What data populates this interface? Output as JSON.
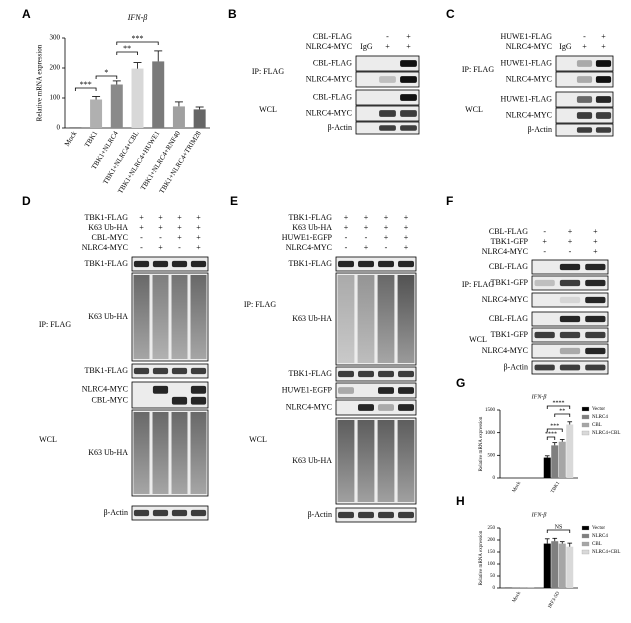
{
  "chart_data": [
    {
      "type": "bar",
      "label": "A",
      "title": "IFN-β",
      "y_label": "Relative mRNA expression",
      "categories": [
        "Mock",
        "TBK1",
        "TBK1+NLRC4",
        "TBK1+NLRC4+CBL",
        "TBK1+NLRC4+HUWE1",
        "TBK1+NLRC4+RNF40",
        "TBK1+NLRC4+TRIM28"
      ],
      "values": [
        1,
        95,
        145,
        198,
        222,
        72,
        62
      ],
      "errors": [
        0,
        10,
        12,
        20,
        35,
        15,
        8
      ],
      "colors": [
        "#000000",
        "#b0b0b0",
        "#8a8a8a",
        "#d8d8d8",
        "#7a7a7a",
        "#a0a0a0",
        "#666666"
      ],
      "ylim": [
        0,
        300
      ],
      "yticks": [
        0,
        100,
        200,
        300
      ],
      "annotations": [
        "***",
        "*",
        "**",
        "***"
      ]
    },
    {
      "type": "bar",
      "label": "G",
      "title": "IFN-β",
      "y_label": "Relative mRNA expression",
      "categories": [
        "Mock",
        "TBK1"
      ],
      "series": [
        {
          "name": "Vector",
          "color": "#000000",
          "values": [
            0,
            450
          ],
          "errors": [
            0,
            40
          ]
        },
        {
          "name": "NLRC4",
          "color": "#7f7f7f",
          "values": [
            0,
            720
          ],
          "errors": [
            0,
            60
          ]
        },
        {
          "name": "CBL",
          "color": "#a6a6a6",
          "values": [
            0,
            800
          ],
          "errors": [
            0,
            50
          ]
        },
        {
          "name": "NLRC4+CBL",
          "color": "#d9d9d9",
          "values": [
            0,
            1180
          ],
          "errors": [
            0,
            60
          ]
        }
      ],
      "ylim": [
        0,
        1500
      ],
      "yticks": [
        0,
        500,
        1000,
        1500
      ],
      "annotations": [
        "****",
        "***",
        "**",
        "****"
      ]
    },
    {
      "type": "bar",
      "label": "H",
      "title": "IFN-β",
      "y_label": "Relative mRNA expression",
      "categories": [
        "Mock",
        "IRF3-5D"
      ],
      "series": [
        {
          "name": "Vector",
          "color": "#000000",
          "values": [
            1,
            185
          ],
          "errors": [
            0,
            20
          ]
        },
        {
          "name": "NLRC4",
          "color": "#7f7f7f",
          "values": [
            1,
            195
          ],
          "errors": [
            0,
            12
          ]
        },
        {
          "name": "CBL",
          "color": "#a6a6a6",
          "values": [
            1,
            185
          ],
          "errors": [
            0,
            8
          ]
        },
        {
          "name": "NLRC4+CBL",
          "color": "#d9d9d9",
          "values": [
            1,
            172
          ],
          "errors": [
            0,
            15
          ]
        }
      ],
      "ylim": [
        0,
        250
      ],
      "yticks": [
        0,
        50,
        100,
        150,
        200,
        250
      ],
      "annotations": [
        "NS"
      ]
    }
  ],
  "blots": [
    {
      "label": "B",
      "header": [
        {
          "label": "CBL-FLAG",
          "signs": [
            null,
            "-",
            "+"
          ]
        },
        {
          "label": "NLRC4-MYC",
          "signs": [
            "IgG",
            "+",
            "+"
          ]
        }
      ],
      "groups": [
        {
          "label": "IP: FLAG",
          "rows": [
            [
              "CBL-FLAG"
            ],
            [
              "NLRC4-MYC"
            ]
          ]
        },
        {
          "label": "WCL",
          "rows": [
            [
              "CBL-FLAG"
            ],
            [
              "NLRC4-MYC"
            ],
            [
              "β-Actin"
            ]
          ]
        }
      ]
    },
    {
      "label": "C",
      "header": [
        {
          "label": "HUWE1-FLAG",
          "signs": [
            null,
            "-",
            "+"
          ]
        },
        {
          "label": "NLRC4-MYC",
          "signs": [
            "IgG",
            "+",
            "+"
          ]
        }
      ],
      "groups": [
        {
          "label": "IP: FLAG",
          "rows": [
            [
              "HUWE1-FLAG"
            ],
            [
              "NLRC4-MYC"
            ]
          ]
        },
        {
          "label": "WCL",
          "rows": [
            [
              "HUWE1-FLAG"
            ],
            [
              "NLRC4-MYC"
            ],
            [
              "β-Actin"
            ]
          ]
        }
      ]
    },
    {
      "label": "D",
      "header": [
        {
          "label": "TBK1-FLAG",
          "signs": [
            "+",
            "+",
            "+",
            "+"
          ]
        },
        {
          "label": "K63 Ub-HA",
          "signs": [
            "+",
            "+",
            "+",
            "+"
          ]
        },
        {
          "label": "CBL-MYC",
          "signs": [
            "-",
            "-",
            "+",
            "+"
          ]
        },
        {
          "label": "NLRC4-MYC",
          "signs": [
            "-",
            "+",
            "-",
            "+"
          ]
        }
      ],
      "groups": [
        {
          "label": "IP: FLAG",
          "rows": [
            [
              "TBK1-FLAG"
            ],
            [
              "K63 Ub-HA"
            ]
          ]
        },
        {
          "label": "WCL",
          "rows": [
            [
              "TBK1-FLAG"
            ],
            [
              "NLRC4-MYC",
              "CBL-MYC"
            ],
            [
              "K63 Ub-HA"
            ],
            [
              "β-Actin"
            ]
          ]
        }
      ]
    },
    {
      "label": "E",
      "header": [
        {
          "label": "TBK1-FLAG",
          "signs": [
            "+",
            "+",
            "+",
            "+"
          ]
        },
        {
          "label": "K63 Ub-HA",
          "signs": [
            "+",
            "+",
            "+",
            "+"
          ]
        },
        {
          "label": "HUWE1-EGFP",
          "signs": [
            "-",
            "-",
            "+",
            "+"
          ]
        },
        {
          "label": "NLRC4-MYC",
          "signs": [
            "-",
            "+",
            "-",
            "+"
          ]
        }
      ],
      "groups": [
        {
          "label": "IP: FLAG",
          "rows": [
            [
              "TBK1-FLAG"
            ],
            [
              "K63 Ub-HA"
            ]
          ]
        },
        {
          "label": "WCL",
          "rows": [
            [
              "TBK1-FLAG"
            ],
            [
              "HUWE1-EGFP"
            ],
            [
              "NLRC4-MYC"
            ],
            [
              "K63 Ub-HA"
            ],
            [
              "β-Actin"
            ]
          ]
        }
      ]
    },
    {
      "label": "F",
      "header": [
        {
          "label": "CBL-FLAG",
          "signs": [
            "-",
            "+",
            "+"
          ]
        },
        {
          "label": "TBK1-GFP",
          "signs": [
            "+",
            "+",
            "+"
          ]
        },
        {
          "label": "NLRC4-MYC",
          "signs": [
            "-",
            "-",
            "+"
          ]
        }
      ],
      "groups": [
        {
          "label": "IP: FLAG",
          "rows": [
            [
              "CBL-FLAG"
            ],
            [
              "TBK1-GFP"
            ],
            [
              "NLRC4-MYC"
            ]
          ]
        },
        {
          "label": "WCL",
          "rows": [
            [
              "CBL-FLAG"
            ],
            [
              "TBK1-GFP"
            ],
            [
              "NLRC4-MYC"
            ],
            [
              "β-Actin"
            ]
          ]
        }
      ]
    }
  ]
}
